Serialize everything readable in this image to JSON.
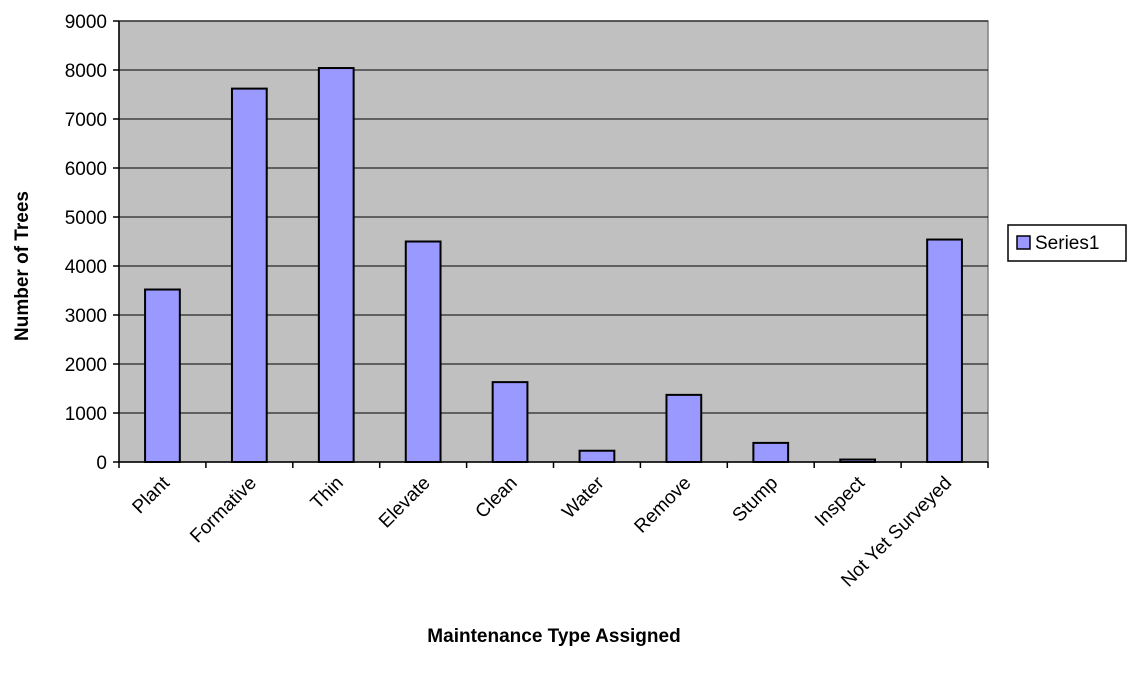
{
  "chart_data": {
    "type": "bar",
    "categories": [
      "Plant",
      "Formative",
      "Thin",
      "Elevate",
      "Clean",
      "Water",
      "Remove",
      "Stump",
      "Inspect",
      "Not Yet Surveyed"
    ],
    "series": [
      {
        "name": "Series1",
        "values": [
          3520,
          7620,
          8040,
          4500,
          1630,
          230,
          1370,
          390,
          50,
          4540
        ]
      }
    ],
    "xlabel": "Maintenance Type Assigned",
    "ylabel": "Number of Trees",
    "ylim": [
      0,
      9000
    ],
    "yticks": [
      "0",
      "1000",
      "2000",
      "3000",
      "4000",
      "5000",
      "6000",
      "7000",
      "8000",
      "9000"
    ],
    "grid": true,
    "legend_position": "right",
    "colors": {
      "plot_background": "#c0c0c0",
      "bar_fill": "#9999ff",
      "bar_stroke": "#000000",
      "gridline": "#000000"
    }
  }
}
